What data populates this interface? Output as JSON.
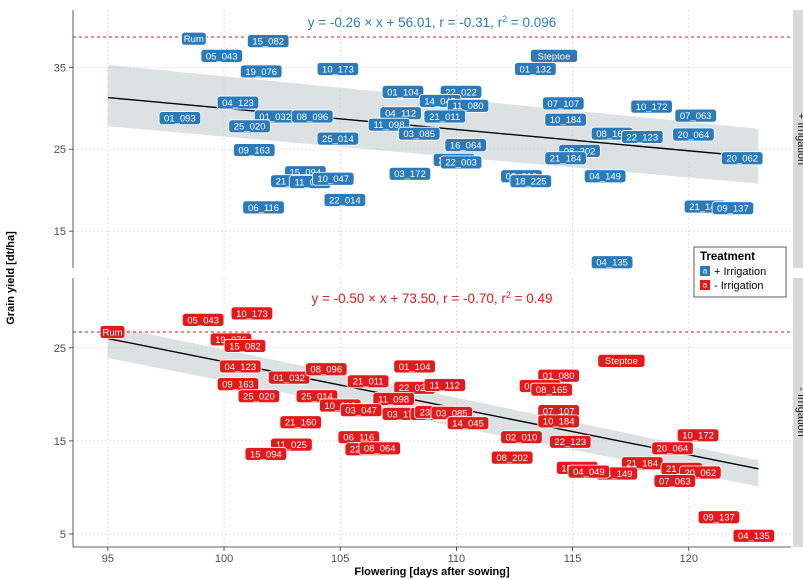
{
  "chart_data": {
    "type": "scatter",
    "xlabel": "Flowering [days after sowing]",
    "ylabel": "Grain yield [dt/ha]",
    "xlim": [
      93.5,
      124.4
    ],
    "x_ticks": [
      95,
      100,
      105,
      110,
      115,
      120
    ],
    "grid": true,
    "legend": {
      "title": "Treatment",
      "position": "right",
      "key_glyph": "a",
      "entries": [
        {
          "label": "+ Irrigation",
          "color": "#2b7bba"
        },
        {
          "label": "- Irrigation",
          "color": "#e31a1c"
        }
      ]
    },
    "panels": [
      {
        "strip_label": "+ Irrigation",
        "color": "#2b7bba",
        "ylim": [
          10.5,
          42
        ],
        "y_ticks": [
          15,
          25,
          35
        ],
        "equation": {
          "a": "-0.26",
          "b": "56.01",
          "r": "-0.31",
          "r2": "0.096"
        },
        "regression": {
          "slope": -0.26,
          "intercept": 56.01,
          "x_range": [
            95,
            123
          ]
        },
        "ci_band": {
          "x": [
            95,
            123
          ],
          "lower": [
            27.8,
            20.8
          ],
          "upper": [
            35.3,
            27.5
          ]
        },
        "reference_line": 38.7,
        "points": [
          {
            "label": "Rum",
            "x": 98.7,
            "y": 38.5
          },
          {
            "label": "15_082",
            "x": 101.9,
            "y": 38.2
          },
          {
            "label": "05_043",
            "x": 99.9,
            "y": 36.4
          },
          {
            "label": "Steptoe",
            "x": 114.2,
            "y": 36.4
          },
          {
            "label": "19_076",
            "x": 101.6,
            "y": 34.5
          },
          {
            "label": "10_173",
            "x": 104.9,
            "y": 34.8
          },
          {
            "label": "01_132",
            "x": 113.4,
            "y": 34.8
          },
          {
            "label": "01_104",
            "x": 107.7,
            "y": 32.0
          },
          {
            "label": "22_022",
            "x": 110.2,
            "y": 32.0
          },
          {
            "label": "04_123",
            "x": 100.6,
            "y": 30.7
          },
          {
            "label": "14_045",
            "x": 109.3,
            "y": 30.9
          },
          {
            "label": "11_080",
            "x": 110.5,
            "y": 30.3
          },
          {
            "label": "07_107",
            "x": 114.6,
            "y": 30.6
          },
          {
            "label": "10_172",
            "x": 118.4,
            "y": 30.2
          },
          {
            "label": "01_093",
            "x": 98.1,
            "y": 28.8
          },
          {
            "label": "01_032",
            "x": 102.2,
            "y": 29.0
          },
          {
            "label": "08_096",
            "x": 103.8,
            "y": 29.0
          },
          {
            "label": "04_112",
            "x": 107.6,
            "y": 29.4
          },
          {
            "label": "21_011",
            "x": 109.5,
            "y": 29.0
          },
          {
            "label": "10_184",
            "x": 114.7,
            "y": 28.6
          },
          {
            "label": "07_063",
            "x": 120.3,
            "y": 29.1
          },
          {
            "label": "25_020",
            "x": 101.1,
            "y": 27.8
          },
          {
            "label": "11_098",
            "x": 107.1,
            "y": 28.0
          },
          {
            "label": "03_085",
            "x": 108.4,
            "y": 26.9
          },
          {
            "label": "08_165",
            "x": 116.7,
            "y": 26.9
          },
          {
            "label": "22_123",
            "x": 118.0,
            "y": 26.5
          },
          {
            "label": "20_064",
            "x": 120.2,
            "y": 26.8
          },
          {
            "label": "25_014",
            "x": 104.9,
            "y": 26.3
          },
          {
            "label": "16_064",
            "x": 110.4,
            "y": 25.5
          },
          {
            "label": "09_163",
            "x": 101.3,
            "y": 24.9
          },
          {
            "label": "08_202",
            "x": 115.3,
            "y": 24.8
          },
          {
            "label": "23_083",
            "x": 109.9,
            "y": 23.7
          },
          {
            "label": "22_003",
            "x": 110.2,
            "y": 23.4
          },
          {
            "label": "21_184",
            "x": 114.7,
            "y": 23.9
          },
          {
            "label": "20_062",
            "x": 122.3,
            "y": 23.9
          },
          {
            "label": "15_094",
            "x": 103.5,
            "y": 22.2
          },
          {
            "label": "03_172",
            "x": 108.0,
            "y": 22.0
          },
          {
            "label": "02_010",
            "x": 112.8,
            "y": 21.7
          },
          {
            "label": "21_160",
            "x": 102.9,
            "y": 21.1
          },
          {
            "label": "11_025",
            "x": 103.7,
            "y": 21.0
          },
          {
            "label": "10_047",
            "x": 104.7,
            "y": 21.4
          },
          {
            "label": "18_225",
            "x": 113.2,
            "y": 21.1
          },
          {
            "label": "04_149",
            "x": 116.4,
            "y": 21.7
          },
          {
            "label": "22_014",
            "x": 105.2,
            "y": 18.8
          },
          {
            "label": "06_116",
            "x": 101.7,
            "y": 17.9
          },
          {
            "label": "21_141",
            "x": 120.7,
            "y": 18.0
          },
          {
            "label": "09_137",
            "x": 121.9,
            "y": 17.8
          },
          {
            "label": "04_135",
            "x": 116.7,
            "y": 11.2
          }
        ]
      },
      {
        "strip_label": "- Irrigation",
        "color": "#e31a1c",
        "ylim": [
          3.6,
          32.5
        ],
        "y_ticks": [
          5,
          15,
          25
        ],
        "equation": {
          "a": "-0.50",
          "b": "73.50",
          "r": "-0.70",
          "r2": "0.49"
        },
        "regression": {
          "slope": -0.5,
          "intercept": 73.5,
          "x_range": [
            95,
            123
          ]
        },
        "ci_band": {
          "x": [
            95,
            123
          ],
          "lower": [
            23.9,
            10.1
          ],
          "upper": [
            27.4,
            12.9
          ]
        },
        "reference_line": 26.7,
        "points": [
          {
            "label": "Rum",
            "x": 95.2,
            "y": 26.7
          },
          {
            "label": "05_043",
            "x": 99.1,
            "y": 28.0
          },
          {
            "label": "10_173",
            "x": 101.2,
            "y": 28.7
          },
          {
            "label": "19_076",
            "x": 100.3,
            "y": 25.9
          },
          {
            "label": "15_082",
            "x": 100.9,
            "y": 25.2
          },
          {
            "label": "Steptoe",
            "x": 117.1,
            "y": 23.6
          },
          {
            "label": "04_123",
            "x": 100.7,
            "y": 23.0
          },
          {
            "label": "01_032",
            "x": 102.8,
            "y": 21.8
          },
          {
            "label": "08_096",
            "x": 104.4,
            "y": 22.7
          },
          {
            "label": "01_104",
            "x": 108.2,
            "y": 23.0
          },
          {
            "label": "01_080",
            "x": 114.4,
            "y": 22.0
          },
          {
            "label": "09_163",
            "x": 100.6,
            "y": 21.1
          },
          {
            "label": "21_011",
            "x": 106.2,
            "y": 21.4
          },
          {
            "label": "22_022",
            "x": 108.2,
            "y": 20.7
          },
          {
            "label": "11_112",
            "x": 109.5,
            "y": 21.0
          },
          {
            "label": "01_132",
            "x": 113.6,
            "y": 20.9
          },
          {
            "label": "08_165",
            "x": 114.1,
            "y": 20.5
          },
          {
            "label": "25_020",
            "x": 101.5,
            "y": 19.8
          },
          {
            "label": "25_014",
            "x": 104.0,
            "y": 19.8
          },
          {
            "label": "11_098",
            "x": 107.3,
            "y": 19.5
          },
          {
            "label": "10_010",
            "x": 105.0,
            "y": 18.8
          },
          {
            "label": "03_047",
            "x": 105.9,
            "y": 18.3
          },
          {
            "label": "03_172",
            "x": 107.7,
            "y": 17.9
          },
          {
            "label": "22_003",
            "x": 108.9,
            "y": 17.9
          },
          {
            "label": "23_033",
            "x": 109.1,
            "y": 18.1
          },
          {
            "label": "03_085",
            "x": 109.8,
            "y": 18.0
          },
          {
            "label": "07_107",
            "x": 114.4,
            "y": 18.2
          },
          {
            "label": "14_045",
            "x": 110.5,
            "y": 16.9
          },
          {
            "label": "21_160",
            "x": 103.3,
            "y": 17.0
          },
          {
            "label": "10_184",
            "x": 114.4,
            "y": 17.1
          },
          {
            "label": "06_116",
            "x": 105.8,
            "y": 15.4
          },
          {
            "label": "02_010",
            "x": 112.8,
            "y": 15.4
          },
          {
            "label": "22_123",
            "x": 114.9,
            "y": 14.9
          },
          {
            "label": "10_172",
            "x": 120.4,
            "y": 15.6
          },
          {
            "label": "11_025",
            "x": 102.9,
            "y": 14.6
          },
          {
            "label": "22_014",
            "x": 106.1,
            "y": 14.1
          },
          {
            "label": "08_064",
            "x": 106.7,
            "y": 14.2
          },
          {
            "label": "15_094",
            "x": 101.8,
            "y": 13.6
          },
          {
            "label": "20_064",
            "x": 119.3,
            "y": 14.2
          },
          {
            "label": "08_202",
            "x": 112.4,
            "y": 13.2
          },
          {
            "label": "21_184",
            "x": 118.0,
            "y": 12.6
          },
          {
            "label": "18_225",
            "x": 115.2,
            "y": 12.1
          },
          {
            "label": "04_149",
            "x": 116.9,
            "y": 11.5
          },
          {
            "label": "04_049",
            "x": 115.7,
            "y": 11.7
          },
          {
            "label": "21_141",
            "x": 119.7,
            "y": 12.0
          },
          {
            "label": "20_062",
            "x": 120.5,
            "y": 11.6
          },
          {
            "label": "07_063",
            "x": 119.4,
            "y": 10.7
          },
          {
            "label": "09_137",
            "x": 121.3,
            "y": 6.8
          },
          {
            "label": "04_135",
            "x": 122.8,
            "y": 4.8
          }
        ]
      }
    ]
  }
}
